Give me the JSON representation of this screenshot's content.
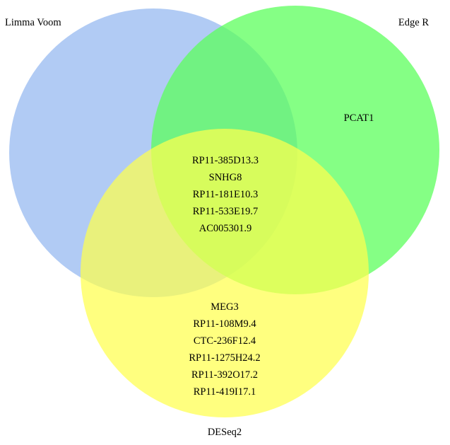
{
  "sets": [
    {
      "id": "limma",
      "name": "Limma Voom",
      "color": "#a6c4f2",
      "opacity": 0.88
    },
    {
      "id": "edger",
      "name": "Edge R",
      "color": "#5cff5c",
      "opacity": 0.75
    },
    {
      "id": "deseq2",
      "name": "DESeq2",
      "color": "#ffff4d",
      "opacity": 0.72
    }
  ],
  "regions": {
    "edger_only": [
      "PCAT1"
    ],
    "all_three": [
      "RP11-385D13.3",
      "SNHG8",
      "RP11-181E10.3",
      "RP11-533E19.7",
      "AC005301.9"
    ],
    "deseq2_only": [
      "MEG3",
      "RP11-108M9.4",
      "CTC-236F12.4",
      "RP11-1275H24.2",
      "RP11-392O17.2",
      "RP11-419I17.1"
    ]
  }
}
